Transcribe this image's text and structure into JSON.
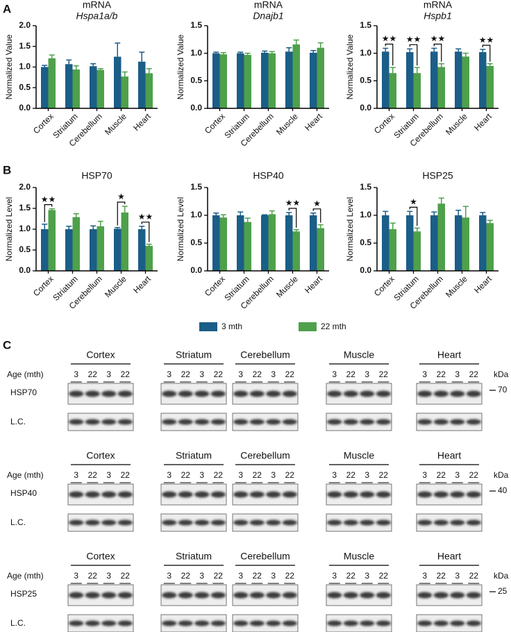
{
  "panel_labels": [
    "A",
    "B",
    "C"
  ],
  "legend": [
    {
      "name": "3 mth",
      "color": "#1b5e87"
    },
    {
      "name": "22 mth",
      "color": "#4ea04b"
    }
  ],
  "chart_data": [
    {
      "type": "bar",
      "title": "mRNA",
      "subtitle": "Hspa1a/b",
      "y_label": "Normalized Value",
      "categories": [
        "Cortex",
        "Striatum",
        "Cerebellum",
        "Muscle",
        "Heart"
      ],
      "ylim": [
        0,
        2
      ],
      "yticks": [
        {
          "value": 0,
          "label": "0.0"
        },
        0.5,
        {
          "value": 1,
          "label": "1.0"
        },
        1.5,
        {
          "value": 2,
          "label": "2.0"
        }
      ],
      "series": [
        {
          "color": "#1b5e87",
          "values": [
            1.0,
            1.07,
            1.02,
            1.25,
            1.13
          ],
          "errors": [
            0.04,
            0.1,
            0.06,
            0.33,
            0.23
          ]
        },
        {
          "color": "#4ea04b",
          "values": [
            1.21,
            0.94,
            0.93,
            0.77,
            0.85
          ],
          "errors": [
            0.08,
            0.09,
            0.03,
            0.11,
            0.11
          ]
        }
      ],
      "significance": [
        null,
        null,
        null,
        null,
        null
      ]
    },
    {
      "type": "bar",
      "title": "mRNA",
      "subtitle": "Dnajb1",
      "y_label": "Normalized Value",
      "categories": [
        "Cortex",
        "Striatum",
        "Cerebellum",
        "Muscle",
        "Heart"
      ],
      "ylim": [
        0,
        1.5
      ],
      "yticks": [
        {
          "value": 0,
          "label": "0.0"
        },
        0.5,
        {
          "value": 1,
          "label": "1.0"
        },
        1.5
      ],
      "series": [
        {
          "color": "#1b5e87",
          "values": [
            1.0,
            1.0,
            1.01,
            1.03,
            1.01
          ],
          "errors": [
            0.02,
            0.02,
            0.03,
            0.07,
            0.04
          ]
        },
        {
          "color": "#4ea04b",
          "values": [
            0.98,
            0.97,
            1.0,
            1.16,
            1.1
          ],
          "errors": [
            0.03,
            0.03,
            0.03,
            0.08,
            0.09
          ]
        }
      ],
      "significance": [
        null,
        null,
        null,
        null,
        null
      ]
    },
    {
      "type": "bar",
      "title": "mRNA",
      "subtitle": "Hspb1",
      "y_label": "Normalized Value",
      "categories": [
        "Cortex",
        "Striatum",
        "Cerebellum",
        "Muscle",
        "Heart"
      ],
      "ylim": [
        0,
        1.5
      ],
      "yticks": [
        {
          "value": 0,
          "label": "0.0"
        },
        0.5,
        {
          "value": 1,
          "label": "1.0"
        },
        1.5
      ],
      "series": [
        {
          "color": "#1b5e87",
          "values": [
            1.03,
            1.02,
            1.03,
            1.03,
            1.02
          ],
          "errors": [
            0.06,
            0.06,
            0.06,
            0.05,
            0.05
          ]
        },
        {
          "color": "#4ea04b",
          "values": [
            0.64,
            0.64,
            0.75,
            0.94,
            0.77
          ],
          "errors": [
            0.1,
            0.1,
            0.06,
            0.06,
            0.04
          ]
        }
      ],
      "significance": [
        "★★",
        "★★",
        "★★",
        null,
        "★★"
      ]
    },
    {
      "type": "bar",
      "title": "HSP70",
      "y_label": "Normalized Level",
      "categories": [
        "Cortex",
        "Striatum",
        "Cerebellum",
        "Muscle",
        "Heart"
      ],
      "ylim": [
        0,
        2
      ],
      "yticks": [
        {
          "value": 0,
          "label": "0.0"
        },
        0.5,
        {
          "value": 1,
          "label": "1.0"
        },
        1.5,
        {
          "value": 2,
          "label": "2.0"
        }
      ],
      "series": [
        {
          "color": "#1b5e87",
          "values": [
            1.0,
            1.0,
            1.0,
            1.01,
            1.0
          ],
          "errors": [
            0.12,
            0.07,
            0.08,
            0.03,
            0.07
          ]
        },
        {
          "color": "#4ea04b",
          "values": [
            1.46,
            1.29,
            1.07,
            1.4,
            0.6
          ],
          "errors": [
            0.03,
            0.08,
            0.12,
            0.15,
            0.04
          ]
        }
      ],
      "significance": [
        "★★",
        null,
        null,
        "★",
        "★★"
      ]
    },
    {
      "type": "bar",
      "title": "HSP40",
      "y_label": "Normalized Level",
      "categories": [
        "Cortex",
        "Striatum",
        "Cerebellum",
        "Muscle",
        "Heart"
      ],
      "ylim": [
        0,
        1.5
      ],
      "yticks": [
        {
          "value": 0,
          "label": "0.0"
        },
        0.5,
        {
          "value": 1,
          "label": "1.0"
        },
        1.5
      ],
      "series": [
        {
          "color": "#1b5e87",
          "values": [
            1.0,
            1.0,
            1.0,
            1.0,
            1.0
          ],
          "errors": [
            0.04,
            0.06,
            0.01,
            0.05,
            0.04
          ]
        },
        {
          "color": "#4ea04b",
          "values": [
            0.96,
            0.88,
            1.02,
            0.71,
            0.77
          ],
          "errors": [
            0.05,
            0.07,
            0.06,
            0.03,
            0.06
          ]
        }
      ],
      "significance": [
        null,
        null,
        null,
        "★★",
        "★"
      ]
    },
    {
      "type": "bar",
      "title": "HSP25",
      "y_label": "Normalized Level",
      "categories": [
        "Cortex",
        "Striatum",
        "Cerebellum",
        "Muscle",
        "Heart"
      ],
      "ylim": [
        0,
        1.5
      ],
      "yticks": [
        {
          "value": 0,
          "label": "0.0"
        },
        0.5,
        {
          "value": 1,
          "label": "1.0"
        },
        1.5
      ],
      "series": [
        {
          "color": "#1b5e87",
          "values": [
            1.0,
            1.0,
            1.0,
            1.0,
            1.0
          ],
          "errors": [
            0.07,
            0.07,
            0.06,
            0.09,
            0.05
          ]
        },
        {
          "color": "#4ea04b",
          "values": [
            0.75,
            0.71,
            1.21,
            0.96,
            0.86
          ],
          "errors": [
            0.11,
            0.06,
            0.1,
            0.2,
            0.05
          ]
        }
      ],
      "significance": [
        null,
        "★",
        null,
        null,
        null
      ]
    }
  ],
  "blots": {
    "age_label": "Age (mth)",
    "ages": [
      3,
      22,
      3,
      22
    ],
    "kda_label": "kDa",
    "rows": [
      {
        "tissues": [
          "Cortex",
          "Striatum",
          "Cerebellum",
          "Muscle",
          "Heart"
        ],
        "protein": "HSP70",
        "loading": "L.C.",
        "marker": 70
      },
      {
        "tissues": [
          "Cortex",
          "Striatum",
          "Cerebellum",
          "Muscle",
          "Heart"
        ],
        "protein": "HSP40",
        "loading": "L.C.",
        "marker": 40
      },
      {
        "tissues": [
          "Cortex",
          "Striatum",
          "Cerebellum",
          "Muscle",
          "Heart"
        ],
        "protein": "HSP25",
        "loading": "L.C.",
        "marker": 25
      }
    ]
  }
}
